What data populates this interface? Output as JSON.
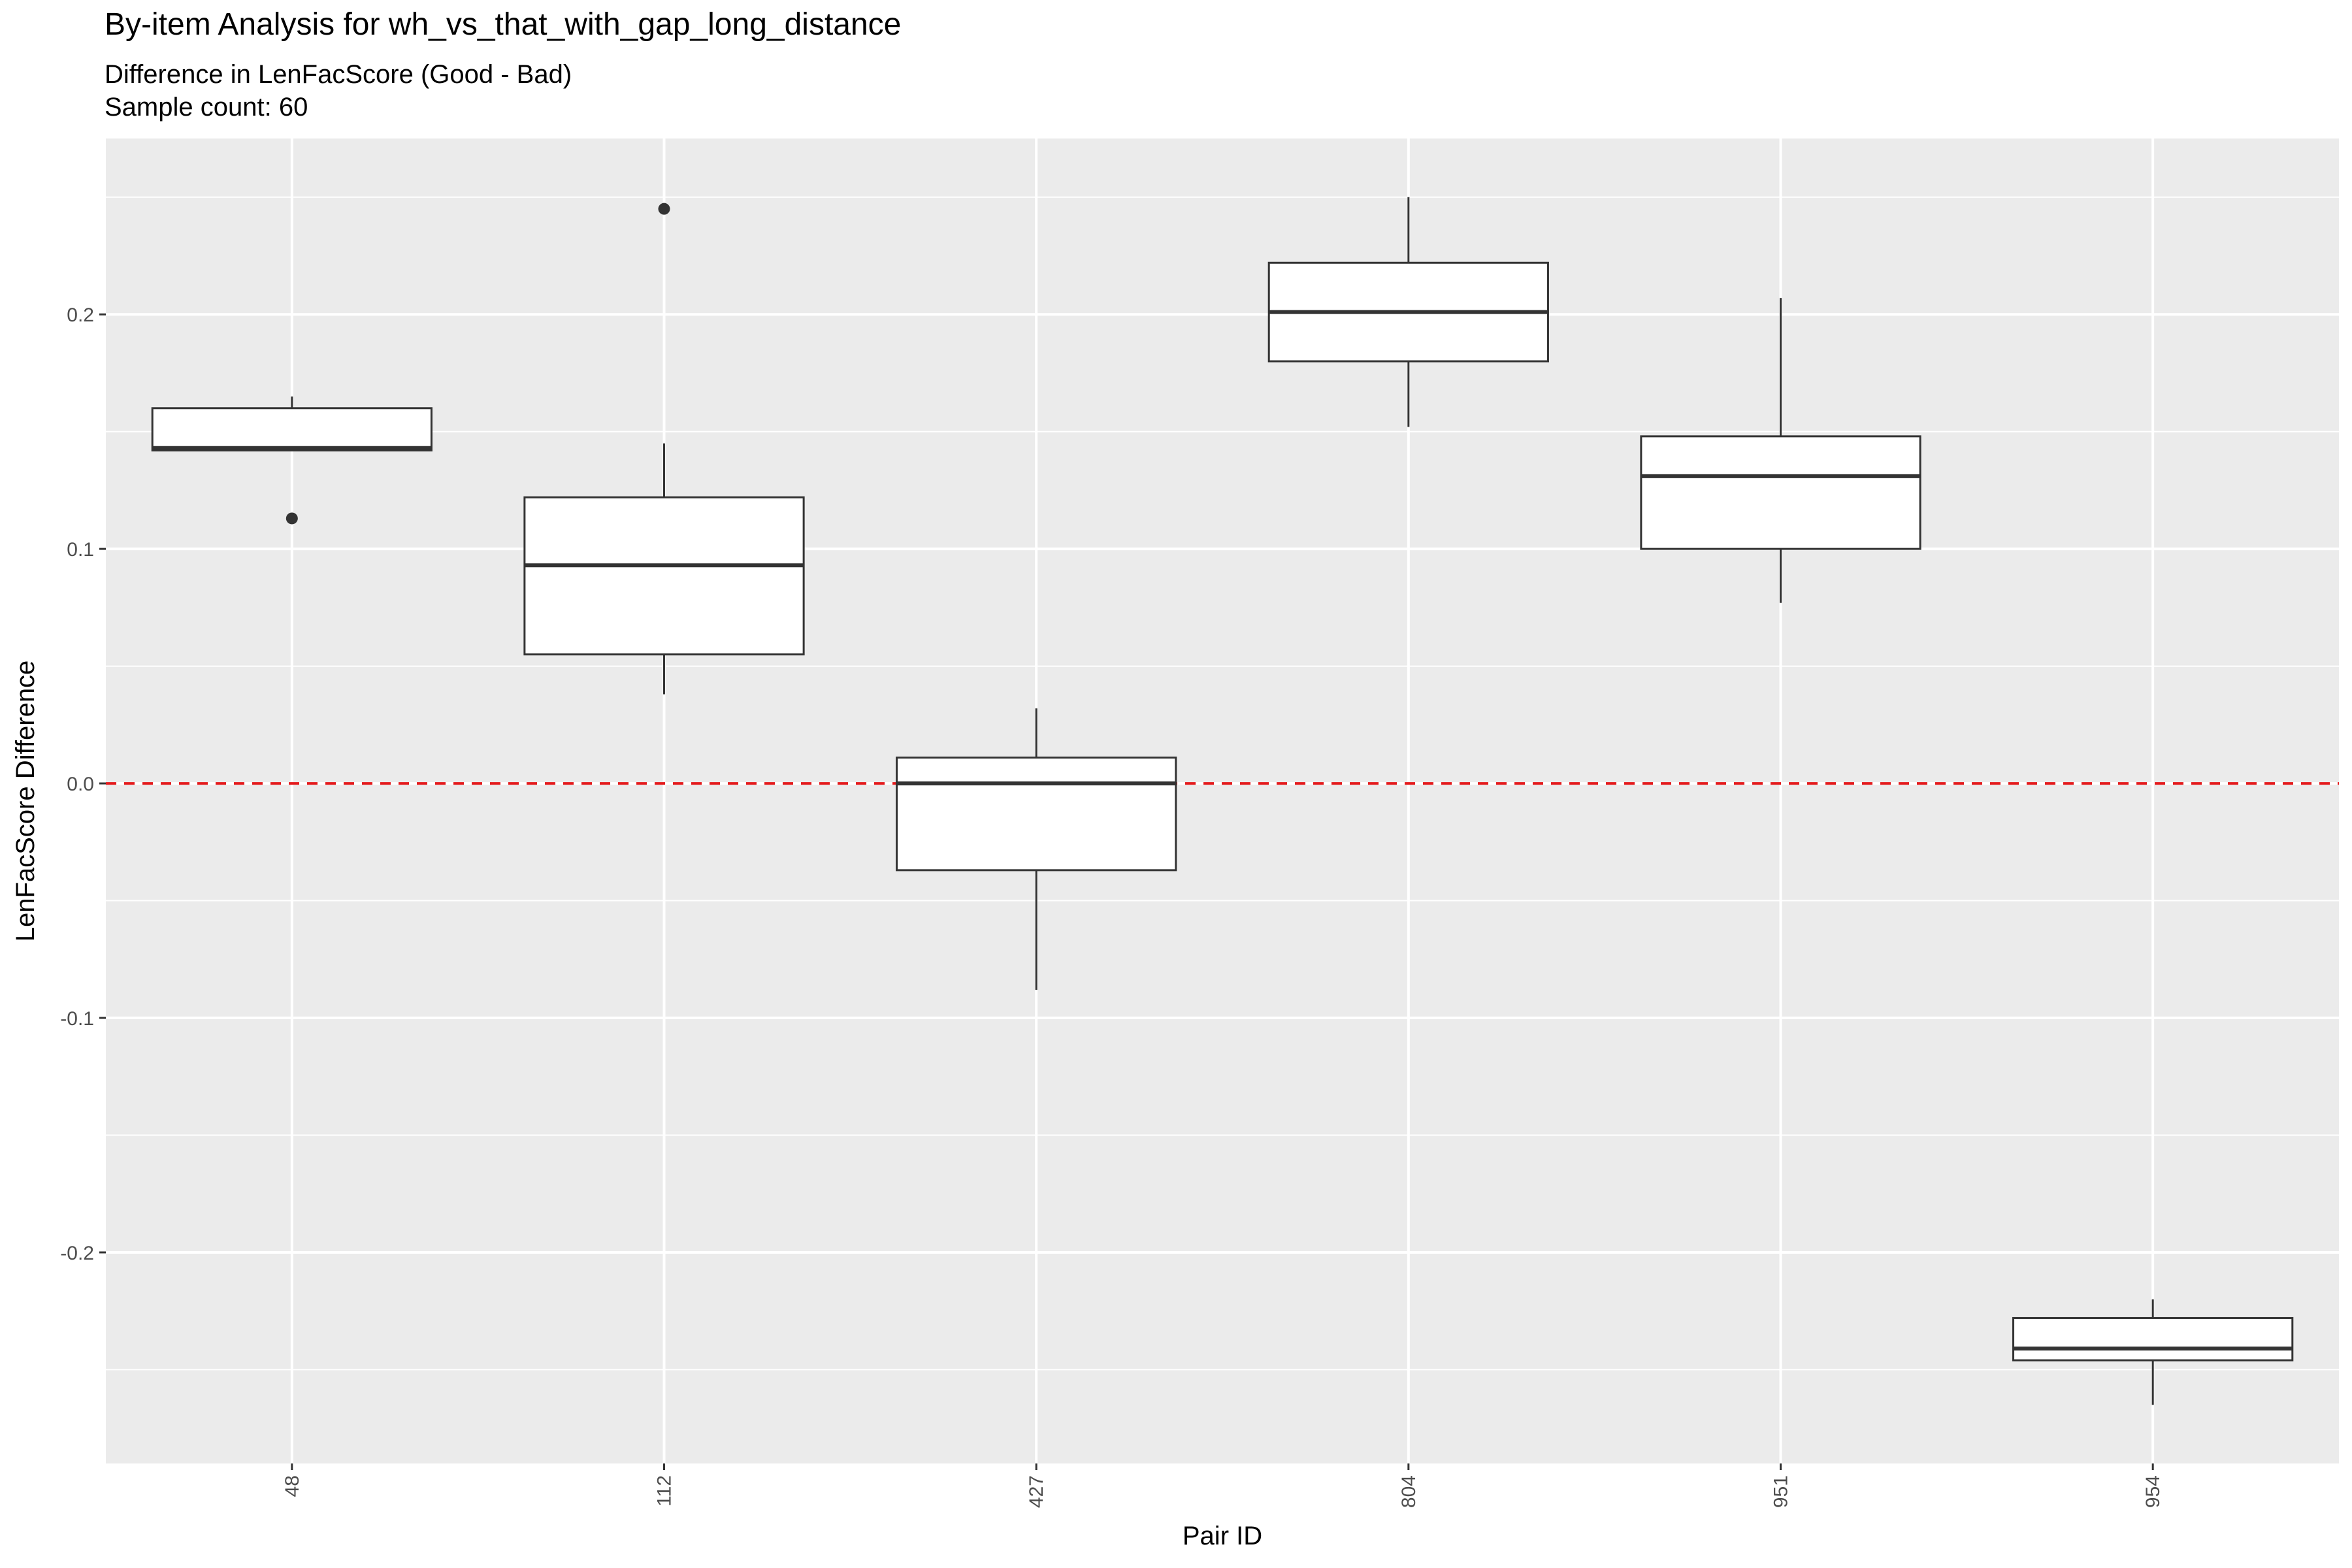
{
  "chart_data": {
    "type": "boxplot",
    "title": "By-item Analysis for wh_vs_that_with_gap_long_distance",
    "subtitle": "Difference in LenFacScore (Good - Bad)",
    "sample_count_text": "Sample count: 60",
    "xlabel": "Pair ID",
    "ylabel": "LenFacScore Difference",
    "ylim": [
      -0.29,
      0.275
    ],
    "y_ticks": [
      {
        "value": -0.2,
        "label": "-0.2"
      },
      {
        "value": -0.1,
        "label": "-0.1"
      },
      {
        "value": 0.0,
        "label": "0.0"
      },
      {
        "value": 0.1,
        "label": "0.1"
      },
      {
        "value": 0.2,
        "label": "0.2"
      }
    ],
    "reference_line": {
      "value": 0.0,
      "color": "#e41a1c",
      "style": "dashed"
    },
    "categories": [
      "48",
      "112",
      "427",
      "804",
      "951",
      "954"
    ],
    "boxes": [
      {
        "id": "48",
        "whisker_low": 0.142,
        "q1": 0.142,
        "median": 0.143,
        "q3": 0.16,
        "whisker_high": 0.165,
        "outliers": [
          0.113
        ]
      },
      {
        "id": "112",
        "whisker_low": 0.038,
        "q1": 0.055,
        "median": 0.093,
        "q3": 0.122,
        "whisker_high": 0.145,
        "outliers": [
          0.245
        ]
      },
      {
        "id": "427",
        "whisker_low": -0.088,
        "q1": -0.037,
        "median": 0.0,
        "q3": 0.011,
        "whisker_high": 0.032,
        "outliers": []
      },
      {
        "id": "804",
        "whisker_low": 0.152,
        "q1": 0.18,
        "median": 0.201,
        "q3": 0.222,
        "whisker_high": 0.25,
        "outliers": []
      },
      {
        "id": "951",
        "whisker_low": 0.077,
        "q1": 0.1,
        "median": 0.131,
        "q3": 0.148,
        "whisker_high": 0.207,
        "outliers": []
      },
      {
        "id": "954",
        "whisker_low": -0.265,
        "q1": -0.246,
        "median": -0.241,
        "q3": -0.228,
        "whisker_high": -0.22,
        "outliers": []
      }
    ],
    "colors": {
      "panel": "#ebebeb",
      "grid": "#ffffff",
      "box_fill": "#ffffff",
      "box_line": "#333333",
      "tick_text": "#4d4d4d"
    }
  }
}
